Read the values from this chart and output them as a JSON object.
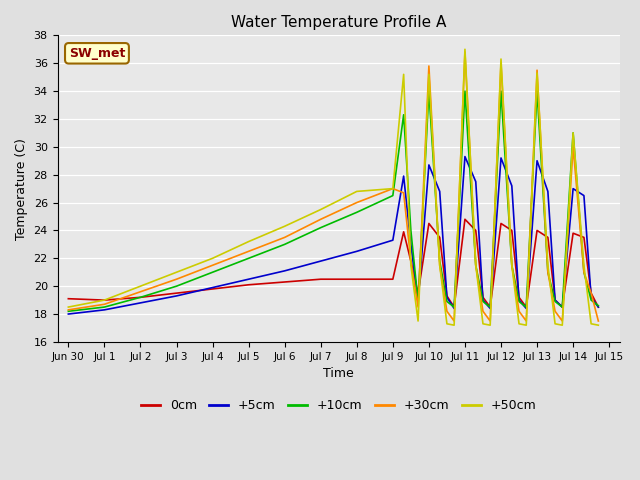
{
  "title": "Water Temperature Profile A",
  "xlabel": "Time",
  "ylabel": "Temperature (C)",
  "ylim": [
    16,
    38
  ],
  "annotation_text": "SW_met",
  "legend_entries": [
    "0cm",
    "+5cm",
    "+10cm",
    "+30cm",
    "+50cm"
  ],
  "line_colors": [
    "#cc0000",
    "#0000cc",
    "#00bb00",
    "#ff8800",
    "#cccc00"
  ],
  "tick_labels": [
    "Jun 30",
    "Jul 1",
    "Jul 2",
    "Jul 3",
    "Jul 4",
    "Jul 5",
    "Jul 6",
    "Jul 7",
    "Jul 8",
    "Jul 9",
    "Jul 10",
    "Jul 11",
    "Jul 12",
    "Jul 13",
    "Jul 14",
    "Jul 15"
  ],
  "x_0cm": [
    0,
    1,
    2,
    3,
    4,
    5,
    6,
    7,
    8,
    9.0,
    9.3,
    9.5,
    9.7,
    10.0,
    10.3,
    10.5,
    10.7,
    11.0,
    11.3,
    11.5,
    11.7,
    12.0,
    12.3,
    12.5,
    12.7,
    13.0,
    13.3,
    13.5,
    13.7,
    14.0,
    14.3,
    14.5,
    14.7
  ],
  "y_0cm": [
    19.1,
    19.0,
    19.2,
    19.5,
    19.8,
    20.1,
    20.3,
    20.5,
    20.5,
    20.5,
    23.9,
    21.8,
    19.5,
    24.5,
    23.5,
    19.3,
    18.5,
    24.8,
    24.0,
    19.2,
    18.5,
    24.5,
    24.0,
    19.2,
    18.5,
    24.0,
    23.5,
    19.0,
    18.5,
    23.8,
    23.5,
    19.5,
    18.5
  ],
  "x_5cm": [
    0,
    1,
    2,
    3,
    4,
    5,
    6,
    7,
    8,
    9.0,
    9.3,
    9.5,
    9.7,
    10.0,
    10.3,
    10.5,
    10.7,
    11.0,
    11.3,
    11.5,
    11.7,
    12.0,
    12.3,
    12.5,
    12.7,
    13.0,
    13.3,
    13.5,
    13.7,
    14.0,
    14.3,
    14.5,
    14.7
  ],
  "y_5cm": [
    18.0,
    18.3,
    18.8,
    19.3,
    19.9,
    20.5,
    21.1,
    21.8,
    22.5,
    23.3,
    27.9,
    23.0,
    18.9,
    28.7,
    26.8,
    19.2,
    18.4,
    29.3,
    27.5,
    19.0,
    18.4,
    29.2,
    27.2,
    19.0,
    18.4,
    29.0,
    26.8,
    19.0,
    18.5,
    27.0,
    26.5,
    19.2,
    18.5
  ],
  "x_10cm": [
    0,
    1,
    2,
    3,
    4,
    5,
    6,
    7,
    8,
    9.0,
    9.3,
    9.5,
    9.7,
    10.0,
    10.3,
    10.5,
    10.7,
    11.0,
    11.3,
    11.5,
    11.7,
    12.0,
    12.3,
    12.5,
    12.7,
    13.0,
    13.3,
    13.5,
    13.7,
    14.0,
    14.3,
    14.5,
    14.7
  ],
  "y_10cm": [
    18.2,
    18.5,
    19.2,
    20.0,
    21.0,
    22.0,
    23.0,
    24.2,
    25.3,
    26.5,
    32.3,
    24.0,
    18.9,
    34.0,
    21.8,
    18.9,
    18.5,
    34.0,
    21.5,
    18.9,
    18.5,
    34.0,
    21.5,
    18.9,
    18.5,
    34.0,
    21.0,
    18.9,
    18.5,
    31.0,
    21.0,
    19.0,
    18.6
  ],
  "x_30cm": [
    0,
    1,
    2,
    3,
    4,
    5,
    6,
    7,
    8,
    9.0,
    9.3,
    9.5,
    9.7,
    10.0,
    10.3,
    10.5,
    10.7,
    11.0,
    11.3,
    11.5,
    11.7,
    12.0,
    12.3,
    12.5,
    12.7,
    13.0,
    13.3,
    13.5,
    13.7,
    14.0,
    14.3,
    14.5,
    14.7
  ],
  "y_30cm": [
    18.3,
    18.7,
    19.6,
    20.5,
    21.5,
    22.5,
    23.5,
    24.8,
    26.0,
    27.0,
    26.7,
    21.8,
    18.5,
    35.8,
    21.5,
    18.2,
    17.5,
    36.8,
    21.5,
    18.2,
    17.5,
    36.0,
    21.5,
    18.2,
    17.5,
    35.5,
    21.0,
    18.2,
    17.5,
    30.0,
    21.0,
    19.5,
    17.5
  ],
  "x_50cm": [
    0,
    1,
    2,
    3,
    4,
    5,
    6,
    7,
    8,
    9.0,
    9.3,
    9.5,
    9.7,
    10.0,
    10.3,
    10.5,
    10.7,
    11.0,
    11.3,
    11.5,
    11.7,
    12.0,
    12.3,
    12.5,
    12.7,
    13.0,
    13.3,
    13.5,
    13.7,
    14.0,
    14.3,
    14.5,
    14.7
  ],
  "y_50cm": [
    18.5,
    19.0,
    20.0,
    21.0,
    22.0,
    23.2,
    24.3,
    25.5,
    26.8,
    27.0,
    35.2,
    21.5,
    17.5,
    35.2,
    21.5,
    17.3,
    17.2,
    37.0,
    21.5,
    17.3,
    17.2,
    36.3,
    21.5,
    17.3,
    17.2,
    35.3,
    21.5,
    17.3,
    17.2,
    31.0,
    21.5,
    17.3,
    17.2
  ]
}
